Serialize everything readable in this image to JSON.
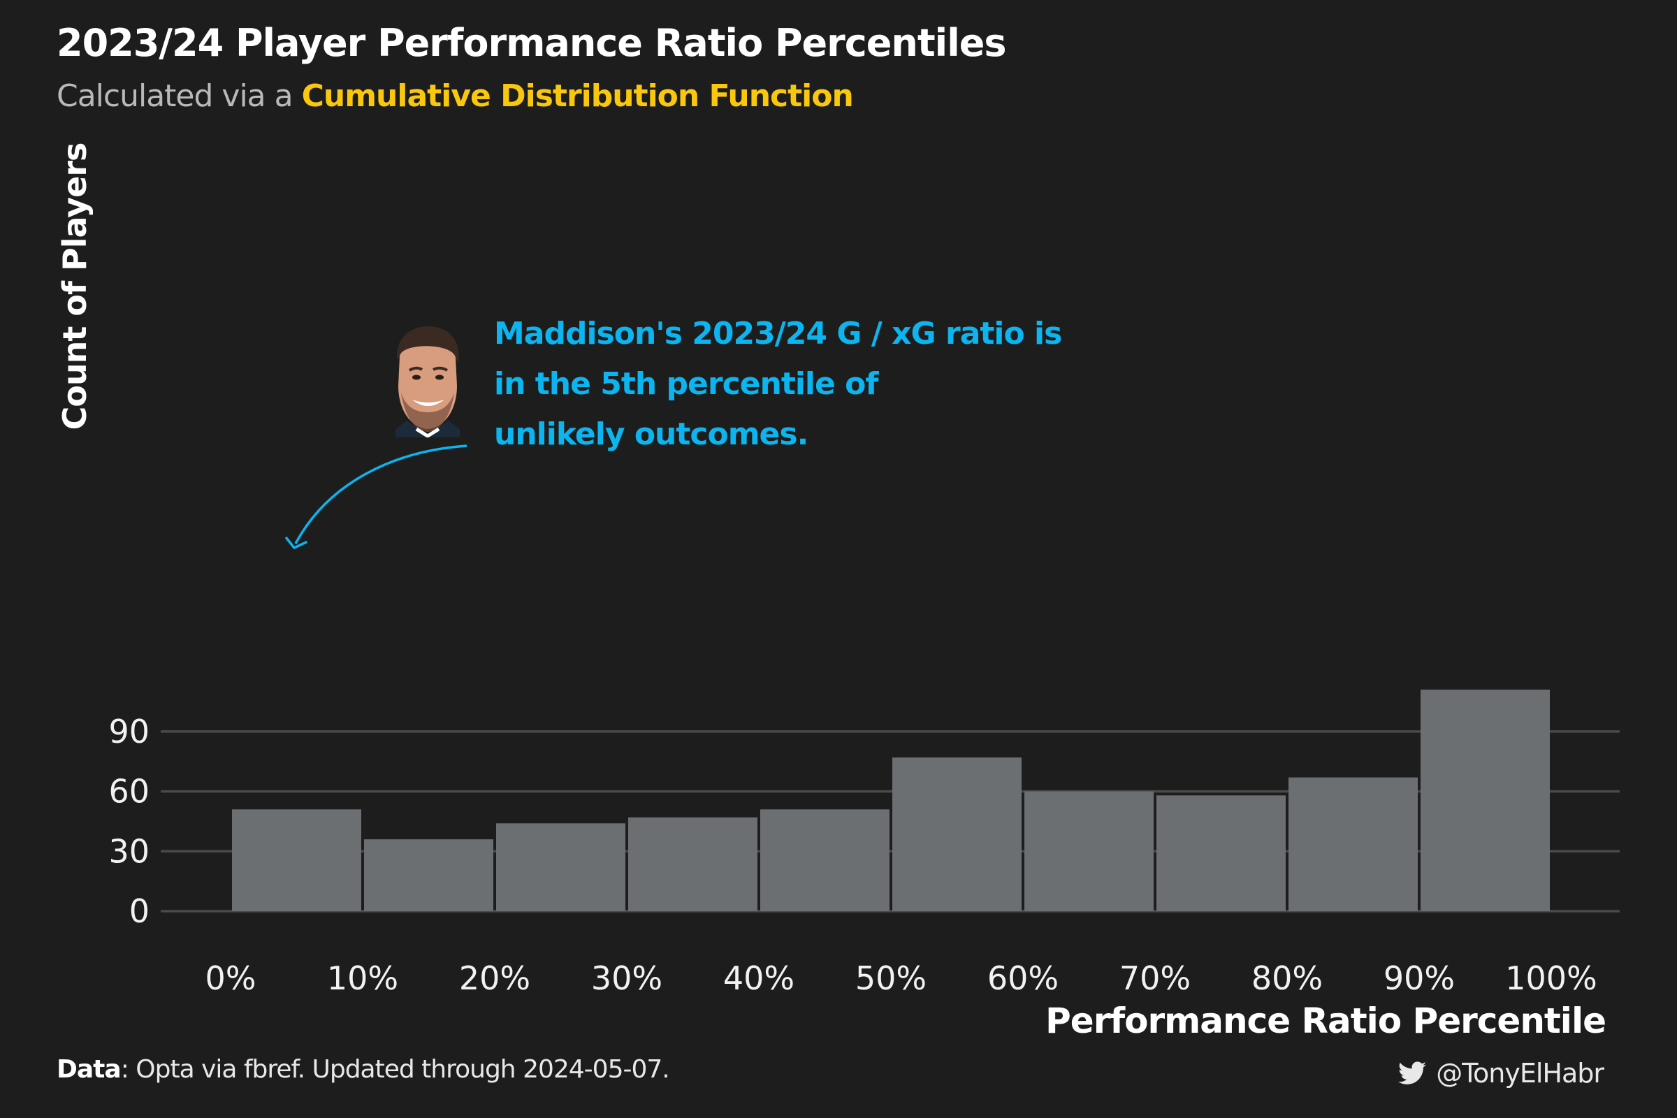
{
  "title": "2023/24 Player Performance Ratio Percentiles",
  "subtitle_prefix": "Calculated via a",
  "subtitle_highlight": "Cumulative Distribution Function",
  "annotation_lines": [
    "Maddison's 2023/24 G / xG ratio is",
    "in the 5th percentile of",
    "unlikely outcomes."
  ],
  "caption_bold": "Data",
  "caption_rest": ": Opta via fbref. Updated through 2024-05-07.",
  "handle": "@TonyElHabr",
  "colors": {
    "background": "#1d1d1d",
    "bar": "#6b6f72",
    "grid": "#4a4a4a",
    "highlight": "#f9c80e",
    "annotation": "#0cb5ef"
  },
  "icons": [
    "twitter-icon",
    "player-face-image"
  ],
  "chart_data": {
    "type": "bar",
    "title": "2023/24 Player Performance Ratio Percentiles",
    "xlabel": "Performance Ratio Percentile",
    "ylabel": "Count of Players",
    "x_ticks": [
      "0%",
      "10%",
      "20%",
      "30%",
      "40%",
      "50%",
      "60%",
      "70%",
      "80%",
      "90%",
      "100%"
    ],
    "y_ticks": [
      0,
      30,
      60,
      90
    ],
    "ylim": [
      0,
      113
    ],
    "bins": [
      {
        "start": 0,
        "end": 10,
        "value": 51
      },
      {
        "start": 10,
        "end": 20,
        "value": 36
      },
      {
        "start": 20,
        "end": 30,
        "value": 44
      },
      {
        "start": 30,
        "end": 40,
        "value": 47
      },
      {
        "start": 40,
        "end": 50,
        "value": 51
      },
      {
        "start": 50,
        "end": 60,
        "value": 77
      },
      {
        "start": 60,
        "end": 70,
        "value": 60
      },
      {
        "start": 70,
        "end": 80,
        "value": 58
      },
      {
        "start": 80,
        "end": 90,
        "value": 67
      },
      {
        "start": 90,
        "end": 100,
        "value": 111
      }
    ],
    "grid": "horizontal",
    "annotation_target_percentile": 5
  }
}
